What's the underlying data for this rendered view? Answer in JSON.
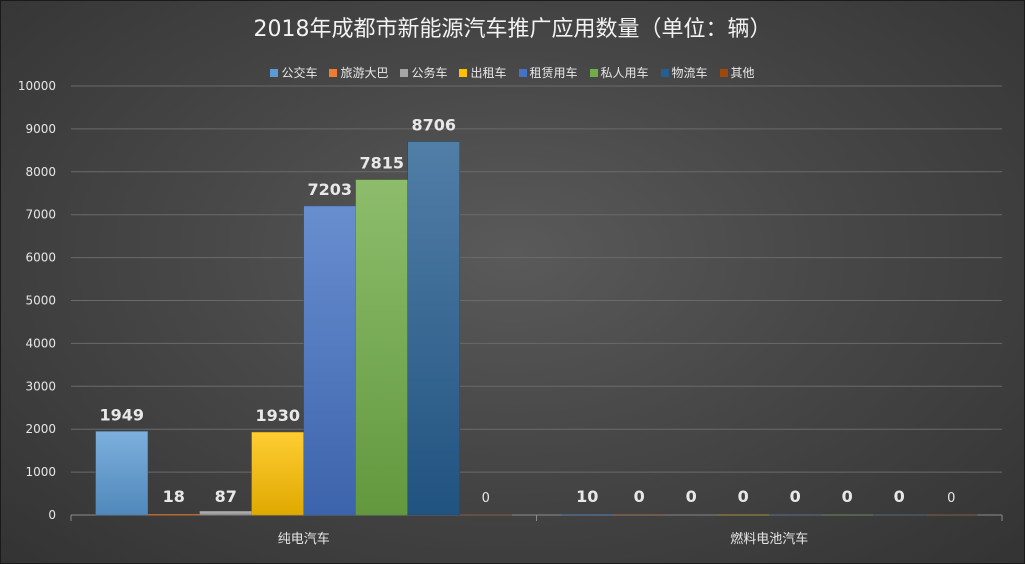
{
  "chart_data": {
    "type": "bar",
    "title": "2018年成都市新能源汽车推广应用数量（单位：辆）",
    "categories": [
      "纯电汽车",
      "燃料电池汽车"
    ],
    "series": [
      {
        "name": "公交车",
        "values": [
          1949,
          10
        ],
        "labels": [
          "1949",
          "10"
        ]
      },
      {
        "name": "旅游大巴",
        "values": [
          18,
          0
        ],
        "labels": [
          "18",
          "0"
        ]
      },
      {
        "name": "公务车",
        "values": [
          87,
          0
        ],
        "labels": [
          "87",
          "0"
        ]
      },
      {
        "name": "出租车",
        "values": [
          1930,
          0
        ],
        "labels": [
          "1930",
          "0"
        ]
      },
      {
        "name": "租赁用车",
        "values": [
          7203,
          0
        ],
        "labels": [
          "7203",
          "0"
        ]
      },
      {
        "name": "私人用车",
        "values": [
          7815,
          0
        ],
        "labels": [
          "7815",
          "0"
        ]
      },
      {
        "name": "物流车",
        "values": [
          8706,
          0
        ],
        "labels": [
          "8706",
          "0"
        ]
      },
      {
        "name": "其他",
        "values": [
          0,
          0
        ],
        "labels": [
          "0",
          "0"
        ]
      }
    ],
    "ylim": [
      0,
      10000
    ],
    "yticks": [
      "0",
      "1000",
      "2000",
      "3000",
      "4000",
      "5000",
      "6000",
      "7000",
      "8000",
      "9000",
      "10000"
    ],
    "grid": true,
    "legend_position": "top",
    "colors": [
      "#5b9bd5",
      "#ed7d31",
      "#a5a5a5",
      "#ffc000",
      "#4472c4",
      "#70ad47",
      "#255e91",
      "#9e480e"
    ]
  }
}
